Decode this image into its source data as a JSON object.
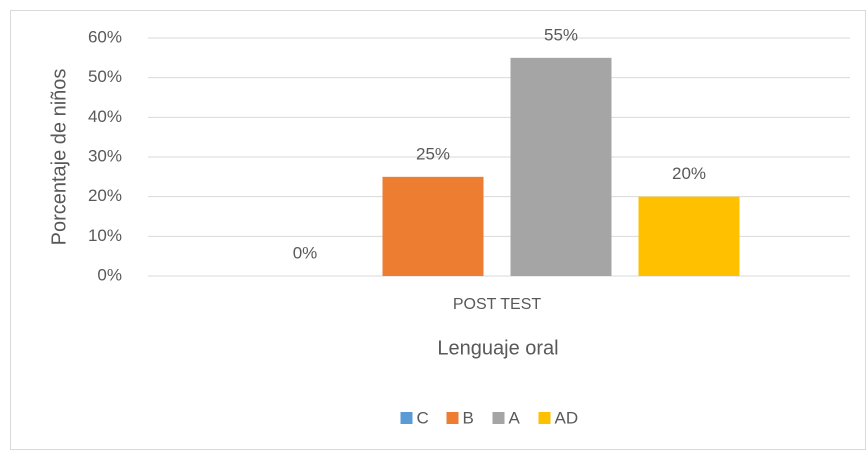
{
  "chart_data": {
    "type": "bar",
    "categories": [
      "POST TEST"
    ],
    "series": [
      {
        "name": "C",
        "color": "#5b9bd5",
        "values": [
          0
        ],
        "value_labels": [
          "0%"
        ]
      },
      {
        "name": "B",
        "color": "#ed7d31",
        "values": [
          25
        ],
        "value_labels": [
          "25%"
        ]
      },
      {
        "name": "A",
        "color": "#a5a5a5",
        "values": [
          55
        ],
        "value_labels": [
          "55%"
        ]
      },
      {
        "name": "AD",
        "color": "#ffc000",
        "values": [
          20
        ],
        "value_labels": [
          "20%"
        ]
      }
    ],
    "x_label": "Lenguaje oral",
    "y_label": "Porcentaje de niños",
    "ylim": [
      0,
      60
    ],
    "yticks": [
      {
        "value": 0,
        "label": "0%"
      },
      {
        "value": 10,
        "label": "10%"
      },
      {
        "value": 20,
        "label": "20%"
      },
      {
        "value": 30,
        "label": "30%"
      },
      {
        "value": 40,
        "label": "40%"
      },
      {
        "value": 50,
        "label": "50%"
      },
      {
        "value": 60,
        "label": "60%"
      }
    ],
    "grid": true,
    "legend": "bottom"
  }
}
